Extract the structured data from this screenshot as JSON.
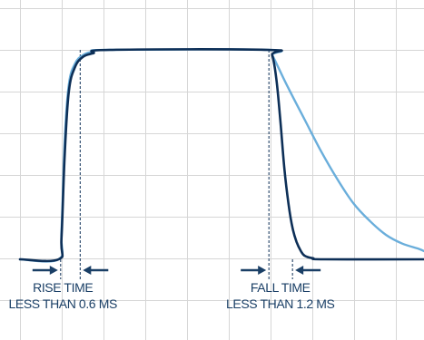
{
  "chart_data": {
    "type": "line",
    "title": "",
    "xlabel": "",
    "ylabel": "",
    "grid": true,
    "x_range": [
      0,
      10
    ],
    "y_range": [
      0,
      6.2
    ],
    "series": [
      {
        "color": "#0d2f57",
        "x": [
          0,
          0.95,
          1.02,
          1.1,
          1.2,
          1.35,
          1.55,
          1.8,
          2.2,
          6.1,
          6.2,
          6.3,
          6.4,
          6.5,
          6.6,
          6.7,
          6.8,
          6.9,
          7.0,
          7.2,
          7.5,
          10
        ],
        "y": [
          0,
          0,
          0.6,
          3.0,
          4.8,
          5.5,
          5.8,
          5.9,
          6.0,
          6.0,
          5.85,
          5.2,
          4.0,
          2.6,
          1.6,
          0.9,
          0.5,
          0.25,
          0.1,
          0.03,
          0,
          0
        ]
      },
      {
        "color": "#6aaedb",
        "x": [
          0,
          0.95,
          1.02,
          1.1,
          1.2,
          1.35,
          1.55,
          1.8,
          2.2,
          6.1,
          6.2,
          6.35,
          6.6,
          7.0,
          7.4,
          7.8,
          8.2,
          8.6,
          9.0,
          9.4,
          9.8,
          10
        ],
        "y": [
          0,
          0,
          0.8,
          3.4,
          5.0,
          5.6,
          5.85,
          5.95,
          6.0,
          6.0,
          5.85,
          5.5,
          4.9,
          4.0,
          3.1,
          2.3,
          1.6,
          1.1,
          0.7,
          0.45,
          0.3,
          0.2
        ]
      }
    ],
    "annotations": [
      {
        "lines": [
          "RISE TIME",
          "LESS THAN 0.6 MS"
        ],
        "marker_x": [
          1.0,
          1.48
        ],
        "text_x": 1.5
      },
      {
        "lines": [
          "FALL TIME",
          "LESS THAN 1.2 MS"
        ],
        "marker_x": [
          6.12,
          6.7
        ],
        "text_x": 6.4
      }
    ],
    "colors": {
      "grid": "#d6d6d6",
      "marker_line": "#0d2f57",
      "arrow": "#1a3f66",
      "text": "#1a3f66"
    }
  }
}
